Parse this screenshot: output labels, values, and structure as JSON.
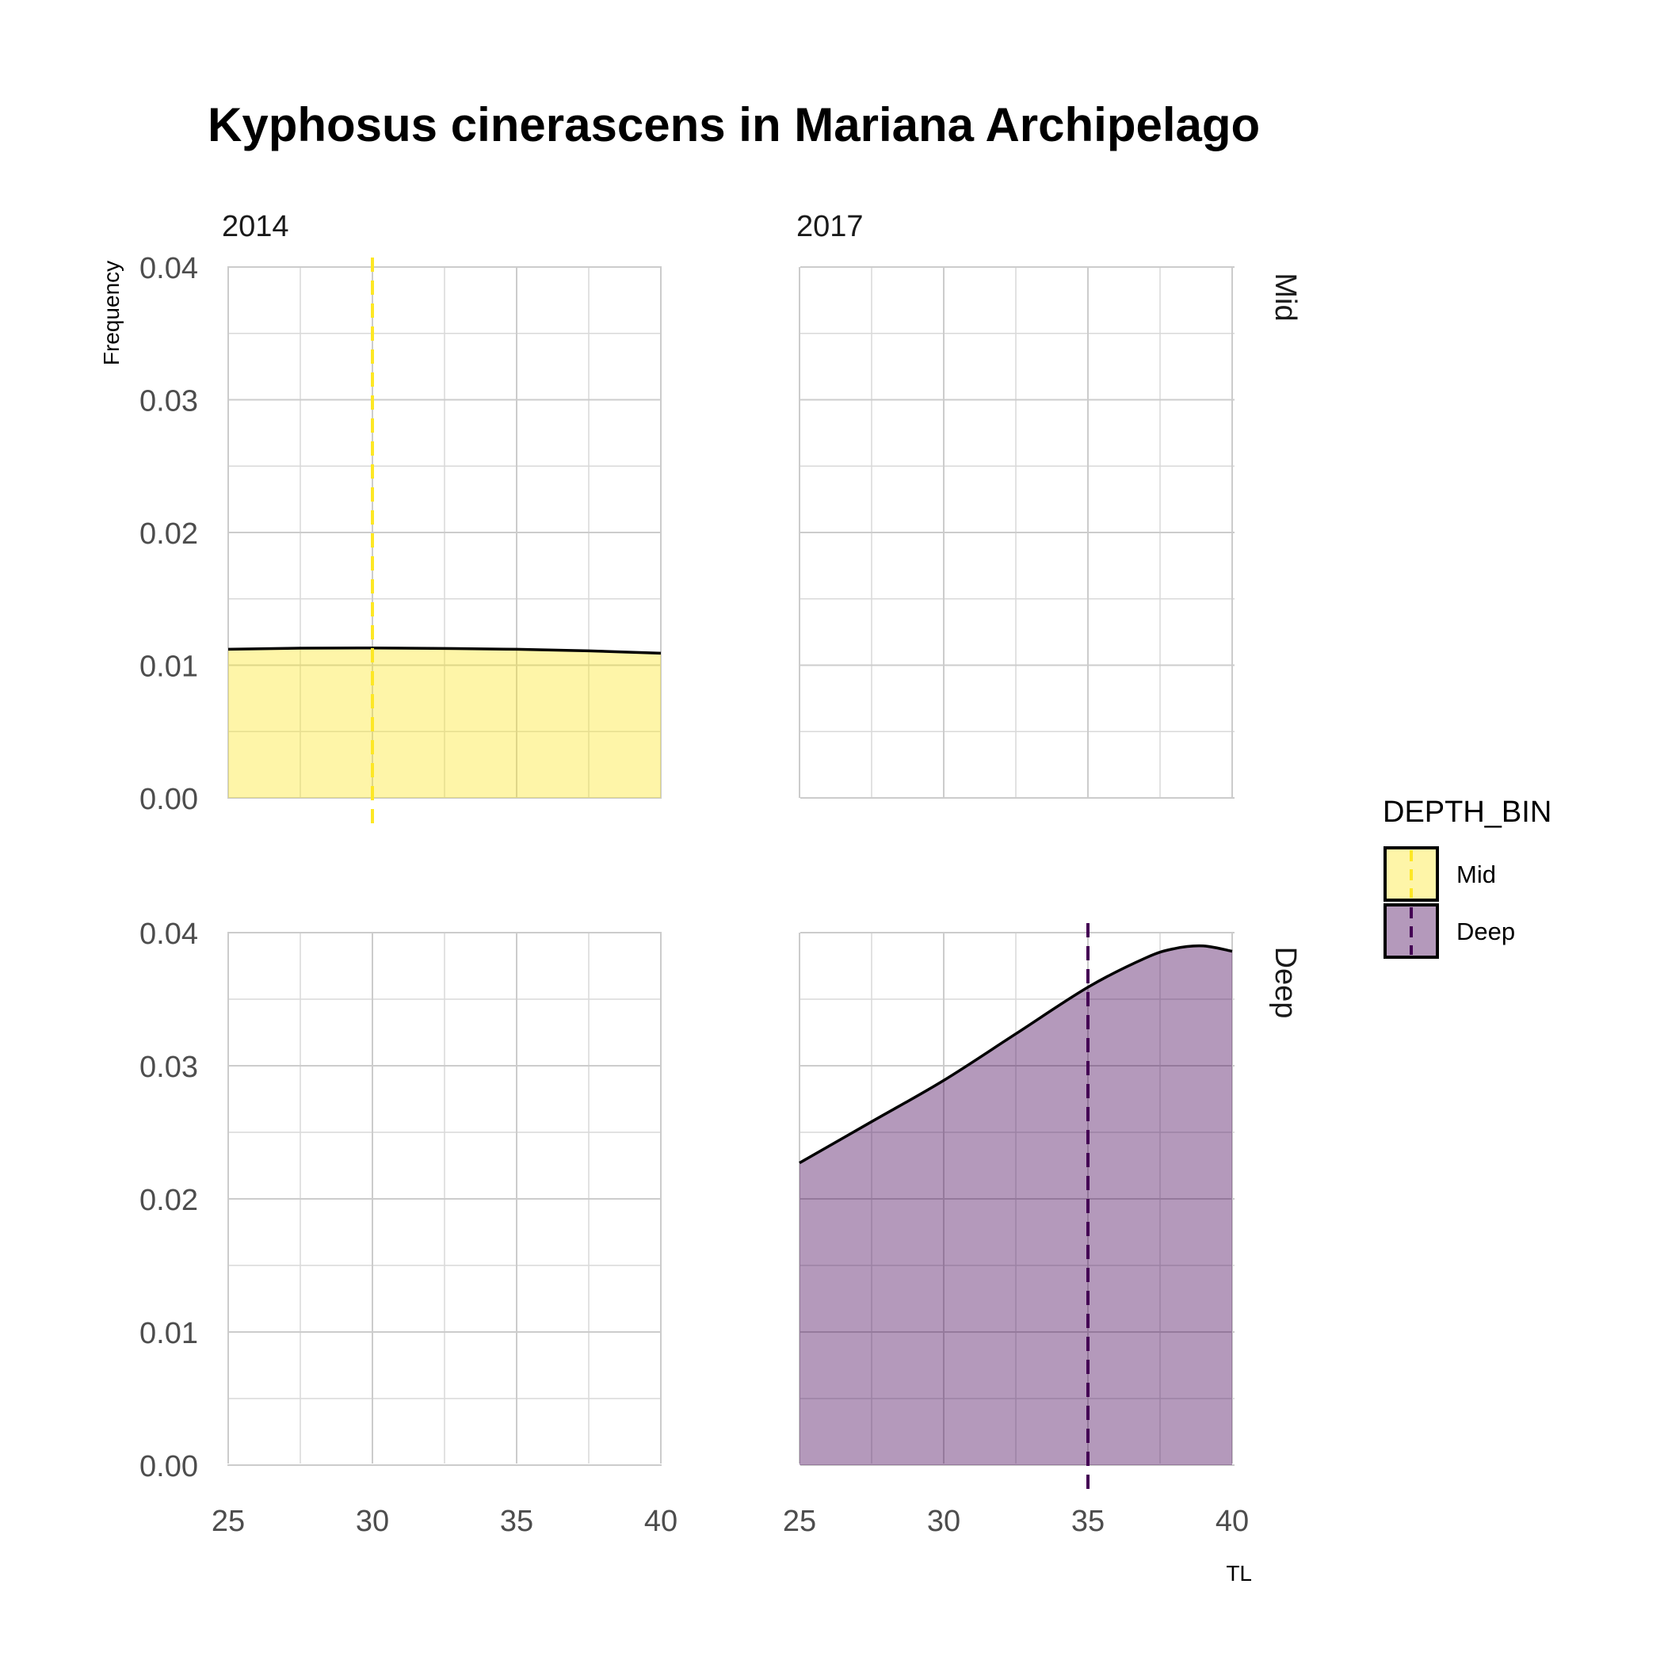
{
  "chart_data": {
    "type": "area",
    "title": "Kyphosus cinerascens in Mariana Archipelago",
    "xlabel": "TL",
    "ylabel": "Frequency",
    "xlim": [
      25,
      40
    ],
    "ylim": [
      0,
      0.04
    ],
    "x_ticks": [
      "25",
      "30",
      "35",
      "40"
    ],
    "y_ticks": [
      "0.00",
      "0.01",
      "0.02",
      "0.03",
      "0.04"
    ],
    "grid": true,
    "facet_columns": [
      "2014",
      "2017"
    ],
    "facet_rows": [
      "Mid",
      "Deep"
    ],
    "legend": {
      "title": "DEPTH_BIN",
      "position": "right",
      "entries": [
        {
          "label": "Mid",
          "fill": "#fde725",
          "line": "#fde725"
        },
        {
          "label": "Deep",
          "fill": "#440154",
          "line": "#440154"
        }
      ]
    },
    "panels": [
      {
        "column": "2014",
        "row": "Mid",
        "series": "Mid",
        "fill": "#fde725",
        "x": [
          25,
          27.5,
          30,
          32.5,
          35,
          37.5,
          40
        ],
        "y": [
          0.0112,
          0.01128,
          0.0113,
          0.01126,
          0.0112,
          0.01108,
          0.0109
        ],
        "mean_line_x": 30
      },
      {
        "column": "2017",
        "row": "Mid",
        "series": null,
        "x": [],
        "y": []
      },
      {
        "column": "2014",
        "row": "Deep",
        "series": null,
        "x": [],
        "y": []
      },
      {
        "column": "2017",
        "row": "Deep",
        "series": "Deep",
        "fill": "#440154",
        "x": [
          25,
          27.5,
          30,
          32.5,
          35,
          37,
          38,
          39,
          40
        ],
        "y": [
          0.0227,
          0.0258,
          0.0289,
          0.0324,
          0.0359,
          0.0381,
          0.0388,
          0.039,
          0.0386
        ],
        "mean_line_x": 35
      }
    ]
  }
}
